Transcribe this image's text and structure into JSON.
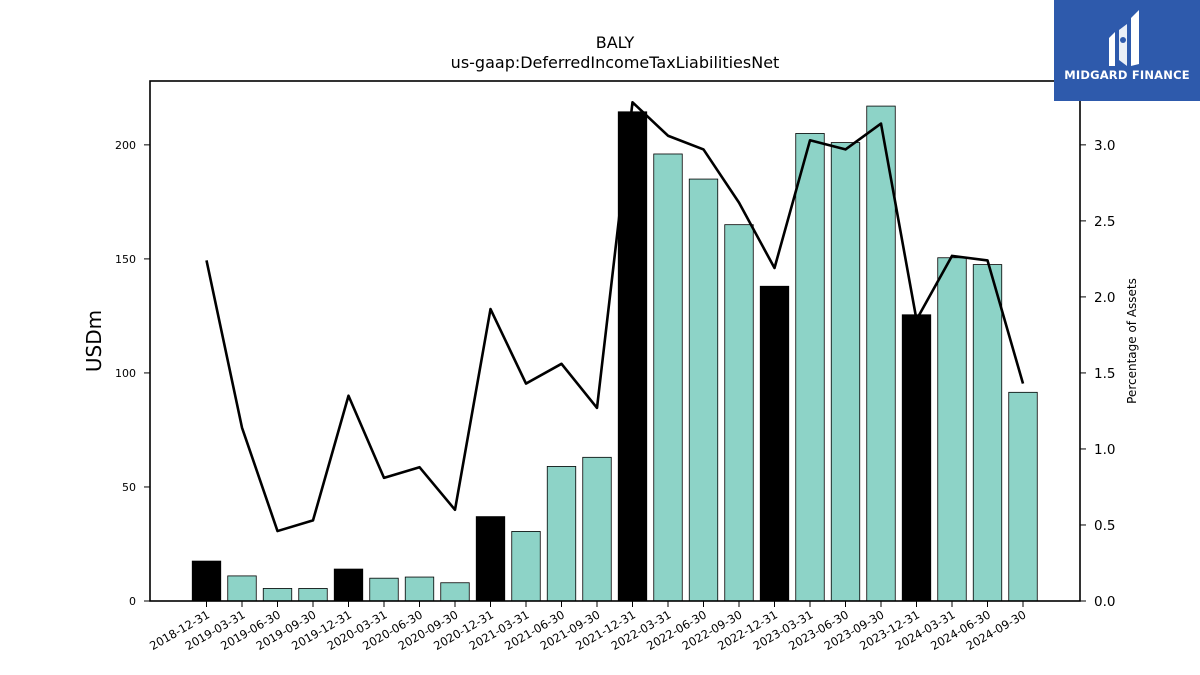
{
  "logo": {
    "text": "MIDGARD FINANCE",
    "icon": "midgard-logo-icon",
    "background": "#2e5aac"
  },
  "chart_data": {
    "type": "bar",
    "title": "BALY",
    "subtitle": "us-gaap:DeferredIncomeTaxLiabilitiesNet",
    "ylabel": "USDm",
    "y2label": "Percentage of Assets",
    "ylim": [
      0,
      228
    ],
    "y2lim": [
      0,
      3.42
    ],
    "yticks": [
      0,
      50,
      100,
      150,
      200
    ],
    "y2ticks": [
      0.0,
      0.5,
      1.0,
      1.5,
      2.0,
      2.5,
      3.0
    ],
    "categories": [
      "2018-12-31",
      "2019-03-31",
      "2019-06-30",
      "2019-09-30",
      "2019-12-31",
      "2020-03-31",
      "2020-06-30",
      "2020-09-30",
      "2020-12-31",
      "2021-03-31",
      "2021-06-30",
      "2021-09-30",
      "2021-12-31",
      "2022-03-31",
      "2022-06-30",
      "2022-09-30",
      "2022-12-31",
      "2023-03-31",
      "2023-06-30",
      "2023-09-30",
      "2023-12-31",
      "2024-03-31",
      "2024-06-30",
      "2024-09-30"
    ],
    "series": [
      {
        "type": "bar",
        "values": [
          17.5,
          11,
          5.5,
          5.5,
          14,
          10,
          10.5,
          8,
          37,
          30.5,
          59,
          63,
          214.5,
          196,
          185,
          165,
          138,
          205,
          201,
          217,
          125.5,
          150.5,
          147.5,
          91.5
        ],
        "annual": [
          true,
          false,
          false,
          false,
          true,
          false,
          false,
          false,
          true,
          false,
          false,
          false,
          true,
          false,
          false,
          false,
          true,
          false,
          false,
          false,
          true,
          false,
          false,
          false
        ],
        "color": "#8dd3c7",
        "annual_color": "#000000"
      },
      {
        "type": "line",
        "axis": "right",
        "values": [
          2.24,
          1.14,
          0.46,
          0.53,
          1.35,
          0.81,
          0.88,
          0.6,
          1.92,
          1.43,
          1.56,
          1.27,
          3.28,
          3.06,
          2.97,
          2.62,
          2.19,
          3.03,
          2.97,
          3.14,
          1.85,
          2.27,
          2.24,
          1.43
        ],
        "color": "#000000"
      }
    ]
  }
}
